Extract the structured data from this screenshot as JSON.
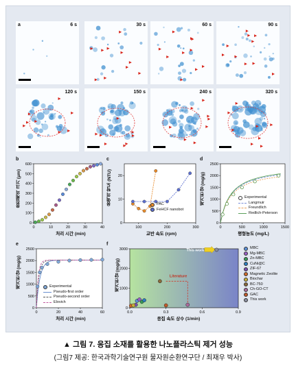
{
  "micrographs": [
    {
      "label": "a",
      "time": "6 s"
    },
    {
      "label": "",
      "time": "30 s"
    },
    {
      "label": "",
      "time": "60 s"
    },
    {
      "label": "",
      "time": "90 s"
    },
    {
      "label": "",
      "time": "120 s"
    },
    {
      "label": "",
      "time": "150 s"
    },
    {
      "label": "",
      "time": "240 s"
    },
    {
      "label": "",
      "time": "320 s"
    }
  ],
  "colors": {
    "stain": "#3f8fd0",
    "arrow": "#d8241a",
    "outline": "#e23a3a"
  },
  "chart_data": [
    {
      "type": "scatter",
      "panel": "b",
      "xlabel": "처리 시간 (min)",
      "ylabel": "응집체의 크기 (μm)",
      "xlim": [
        0,
        40
      ],
      "ylim": [
        0,
        600
      ],
      "xticks": [
        0,
        10,
        20,
        30,
        40
      ],
      "yticks": [
        0,
        100,
        200,
        300,
        400,
        500,
        600
      ],
      "x": [
        1,
        3,
        5,
        7,
        9,
        11,
        13,
        15,
        17,
        19,
        21,
        23,
        25,
        27,
        29,
        31,
        33,
        35,
        37,
        39
      ],
      "y": [
        5,
        15,
        30,
        55,
        85,
        130,
        180,
        230,
        290,
        340,
        390,
        430,
        470,
        500,
        530,
        550,
        570,
        580,
        590,
        600
      ]
    },
    {
      "type": "line",
      "panel": "c",
      "xlabel": "교반 속도 (rpm)",
      "ylabel": "용액의 탁도 (NTU)",
      "xlim": [
        50,
        300
      ],
      "ylim": [
        0,
        25
      ],
      "xticks": [
        100,
        200,
        300
      ],
      "yticks": [
        0,
        10,
        20
      ],
      "series": [
        {
          "name": "PAC",
          "color": "#e88a2a",
          "x": [
            80,
            100,
            120,
            140,
            160
          ],
          "y": [
            8,
            6,
            5,
            7,
            22
          ]
        },
        {
          "name": "FeHCF nanobot",
          "color": "#5b6fd0",
          "x": [
            80,
            120,
            160,
            200,
            240,
            280
          ],
          "y": [
            9,
            9,
            9,
            9,
            14,
            21
          ]
        }
      ]
    },
    {
      "type": "line",
      "panel": "d",
      "xlabel": "평형농도 (mg/L)",
      "ylabel": "제거된 양 (mg/g)",
      "xlim": [
        0,
        1500
      ],
      "ylim": [
        0,
        2500
      ],
      "xticks": [
        0,
        500,
        1000,
        1500
      ],
      "yticks": [
        0,
        500,
        1000,
        1500,
        2000,
        2500
      ],
      "series": [
        {
          "name": "Experimental",
          "x": [
            50,
            150,
            300,
            500,
            800,
            1350
          ],
          "y": [
            350,
            800,
            1200,
            1500,
            1750,
            2000
          ]
        },
        {
          "name": "Langmuir"
        },
        {
          "name": "Freundlich"
        },
        {
          "name": "Redlich-Peterson"
        }
      ]
    },
    {
      "type": "line",
      "panel": "e",
      "xlabel": "처리 시간 (min)",
      "ylabel": "제거된 양 (mg/g)",
      "xlim": [
        0,
        60
      ],
      "ylim": [
        0,
        2500
      ],
      "xticks": [
        0,
        20,
        40,
        60
      ],
      "yticks": [
        0,
        500,
        1000,
        1500,
        2000,
        2500
      ],
      "series": [
        {
          "name": "Experimental",
          "x": [
            1,
            3,
            5,
            10,
            20,
            30,
            40,
            50,
            60
          ],
          "y": [
            900,
            1500,
            1700,
            1850,
            1950,
            2000,
            2020,
            2030,
            2040
          ]
        },
        {
          "name": "Pseudo-first order"
        },
        {
          "name": "Pseudo-second order"
        },
        {
          "name": "Elovich"
        }
      ]
    },
    {
      "type": "scatter",
      "panel": "f",
      "xlabel": "응집 속도 상수 (1/min)",
      "ylabel": "제거된 양 (mg/g)",
      "xlim": [
        0,
        0.9
      ],
      "ylim": [
        0,
        3000
      ],
      "xticks": [
        0.0,
        0.3,
        0.6,
        0.9
      ],
      "yticks": [
        0,
        1000,
        2000,
        3000
      ],
      "annotations": [
        "This work",
        "Literature"
      ],
      "series": [
        {
          "name": "MBC",
          "color": "#5a8fd8",
          "x": [
            0.06
          ],
          "y": [
            350
          ]
        },
        {
          "name": "Mg-MBC",
          "color": "#9a5fc4",
          "x": [
            0.08
          ],
          "y": [
            420
          ]
        },
        {
          "name": "Zn-MBC",
          "color": "#3a9a5a",
          "x": [
            0.1
          ],
          "y": [
            300
          ]
        },
        {
          "name": "CuNi@C",
          "color": "#2b7fc0",
          "x": [
            0.12
          ],
          "y": [
            380
          ]
        },
        {
          "name": "ZIF-67",
          "color": "#7a4fb0",
          "x": [
            0.05
          ],
          "y": [
            150
          ]
        },
        {
          "name": "Magnetic Zeolite",
          "color": "#d06a2a",
          "x": [
            0.01
          ],
          "y": [
            100
          ]
        },
        {
          "name": "Biochar",
          "color": "#c8b03a",
          "x": [
            0.03
          ],
          "y": [
            120
          ]
        },
        {
          "name": "BC-750",
          "color": "#8a6a3a",
          "x": [
            0.25
          ],
          "y": [
            1350
          ]
        },
        {
          "name": "Ch-GO-CT",
          "color": "#aa6a9a",
          "x": [
            0.48
          ],
          "y": [
            150
          ]
        },
        {
          "name": "GAC",
          "color": "#c05a2a",
          "x": [
            0.3
          ],
          "y": [
            120
          ]
        },
        {
          "name": "This work",
          "color": "#8a8fa0",
          "x": [
            0.72
          ],
          "y": [
            2950
          ]
        }
      ]
    }
  ],
  "labels": {
    "b": "b",
    "c": "c",
    "d": "d",
    "e": "e",
    "f": "f"
  },
  "legends": {
    "c": [
      "PAC",
      "FeHCF nanobot"
    ],
    "d": [
      "Experimental",
      "Langmuir",
      "Freundlich",
      "Redlich-Peterson"
    ],
    "e": [
      "Experimental",
      "Pseudo-first order",
      "Pseudo-second order",
      "Elovich"
    ],
    "f": [
      "MBC",
      "Mg-MBC",
      "Zn-MBC",
      "CuNi@C",
      "ZIF-67",
      "Magnetic Zeolite",
      "Biochar",
      "BC-750",
      "Ch-GO-CT",
      "GAC",
      "This work"
    ]
  },
  "annot": {
    "this_work": "This work",
    "literature": "Literature"
  },
  "caption": {
    "title": "▲ 그림 7. 응집 소재를 활용한 나노플라스틱 제거 성능",
    "credit": "(그림7 제공: 한국과학기술연구원 물자원순환연구단 / 최재우 박사)"
  }
}
